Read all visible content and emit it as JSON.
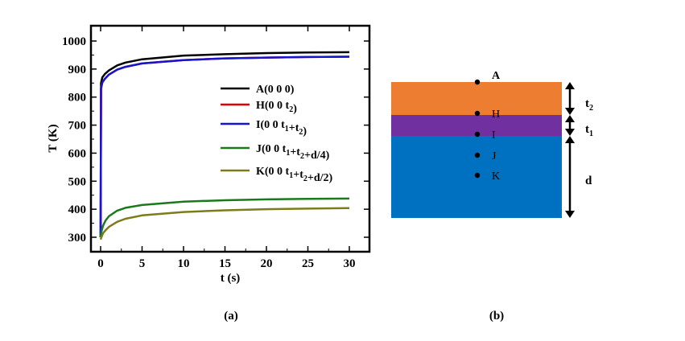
{
  "chart_data": {
    "type": "line",
    "xlabel": "t (s)",
    "ylabel": "T (K)",
    "xlim": [
      -1.5,
      31.5
    ],
    "ylim": [
      260,
      1050
    ],
    "xticks": [
      0,
      5,
      10,
      15,
      20,
      25,
      30
    ],
    "yticks": [
      300,
      400,
      500,
      600,
      700,
      800,
      900,
      1000
    ],
    "grid": false,
    "legend_position": "center-right",
    "caption": "(a)",
    "series": [
      {
        "name": "A(0 0 0)",
        "label_parts": [
          {
            "t": "A(0 0 0)"
          }
        ],
        "color": "#000000",
        "x": [
          0,
          0.05,
          0.2,
          0.5,
          1,
          2,
          3,
          5,
          10,
          15,
          20,
          25,
          30
        ],
        "y": [
          300,
          850,
          870,
          882,
          895,
          913,
          923,
          935,
          948,
          953,
          957,
          959,
          960
        ]
      },
      {
        "name": "H(0 0 t2)",
        "label_parts": [
          {
            "t": "H(0 0 t"
          },
          {
            "sub": "2"
          },
          {
            "t": ")"
          }
        ],
        "color": "#e00000",
        "x": [
          0,
          0.05,
          0.2,
          0.5,
          1,
          2,
          3,
          5,
          10,
          15,
          20,
          25,
          30
        ],
        "y": [
          300,
          830,
          852,
          865,
          880,
          898,
          908,
          920,
          932,
          938,
          941,
          943,
          944
        ]
      },
      {
        "name": "I(0 0 t1+t2)",
        "label_parts": [
          {
            "t": "I(0 0 t"
          },
          {
            "sub": "1"
          },
          {
            "t": "+t"
          },
          {
            "sub": "2"
          },
          {
            "t": ")"
          }
        ],
        "color": "#1515d0",
        "x": [
          0,
          0.05,
          0.2,
          0.5,
          1,
          2,
          3,
          5,
          10,
          15,
          20,
          25,
          30
        ],
        "y": [
          300,
          830,
          852,
          865,
          880,
          898,
          908,
          920,
          932,
          938,
          941,
          943,
          944
        ]
      },
      {
        "name": "J(0 0 t1+t2+d/4)",
        "label_parts": [
          {
            "t": "J(0 0 t"
          },
          {
            "sub": "1"
          },
          {
            "t": "+t"
          },
          {
            "sub": "2"
          },
          {
            "t": "+d/4)"
          }
        ],
        "color": "#1a7a1a",
        "x": [
          0,
          0.1,
          0.3,
          0.6,
          1,
          2,
          3,
          5,
          10,
          15,
          20,
          25,
          30
        ],
        "y": [
          300,
          320,
          342,
          360,
          375,
          395,
          405,
          415,
          427,
          432,
          435,
          437,
          438
        ]
      },
      {
        "name": "K(0 0 t1+t2+d/2)",
        "label_parts": [
          {
            "t": "K(0 0 t"
          },
          {
            "sub": "1"
          },
          {
            "t": "+t"
          },
          {
            "sub": "2"
          },
          {
            "t": "+d/2)"
          }
        ],
        "color": "#7f7a1a",
        "x": [
          0,
          0.1,
          0.3,
          0.6,
          1,
          2,
          3,
          5,
          10,
          15,
          20,
          25,
          30
        ],
        "y": [
          292,
          300,
          315,
          325,
          337,
          355,
          366,
          378,
          390,
          396,
          400,
          402,
          404
        ]
      }
    ]
  },
  "diagram": {
    "caption": "(b)",
    "layers": [
      {
        "name": "top layer",
        "color": "#ed7d31",
        "thickness_label": "t",
        "sub": "2"
      },
      {
        "name": "middle layer",
        "color": "#7030a0",
        "thickness_label": "t",
        "sub": "1"
      },
      {
        "name": "substrate",
        "color": "#0070c0",
        "thickness_label": "d",
        "sub": ""
      }
    ],
    "points": [
      "A",
      "H",
      "I",
      "J",
      "K"
    ]
  }
}
